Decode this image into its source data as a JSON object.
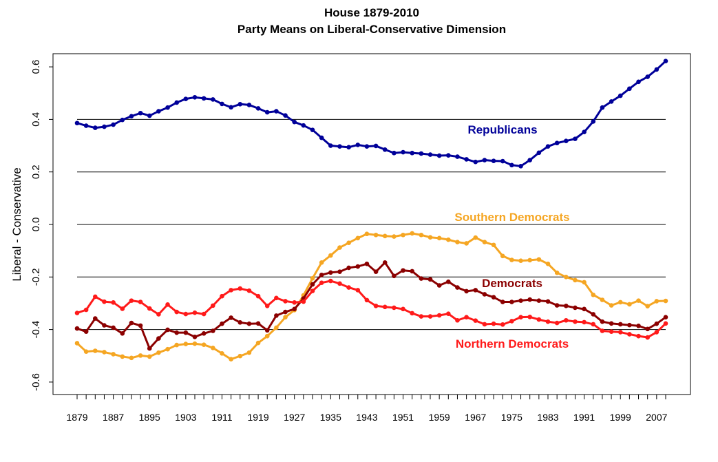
{
  "chart_data": {
    "type": "line",
    "title": "House 1879-2010",
    "subtitle": "Party Means on Liberal-Conservative Dimension",
    "ylabel": "Liberal - Conservative",
    "xlabel": "",
    "xlim": [
      1879,
      2009
    ],
    "ylim": [
      -0.65,
      0.65
    ],
    "x_ticks": [
      "1879",
      "1887",
      "1895",
      "1903",
      "1911",
      "1919",
      "1927",
      "1935",
      "1943",
      "1951",
      "1959",
      "1967",
      "1975",
      "1983",
      "1991",
      "1999",
      "2007"
    ],
    "y_ticks": [
      "-0.6",
      "-0.4",
      "-0.2",
      "0.0",
      "0.2",
      "0.4",
      "0.6"
    ],
    "reference_lines": [
      -0.4,
      -0.2,
      0.0,
      0.2,
      0.4
    ],
    "x": [
      1879,
      1881,
      1883,
      1885,
      1887,
      1889,
      1891,
      1893,
      1895,
      1897,
      1899,
      1901,
      1903,
      1905,
      1907,
      1909,
      1911,
      1913,
      1915,
      1917,
      1919,
      1921,
      1923,
      1925,
      1927,
      1929,
      1931,
      1933,
      1935,
      1937,
      1939,
      1941,
      1943,
      1945,
      1947,
      1949,
      1951,
      1953,
      1955,
      1957,
      1959,
      1961,
      1963,
      1965,
      1967,
      1969,
      1971,
      1973,
      1975,
      1977,
      1979,
      1981,
      1983,
      1985,
      1987,
      1989,
      1991,
      1993,
      1995,
      1997,
      1999,
      2001,
      2003,
      2005,
      2007,
      2009
    ],
    "series": [
      {
        "name": "Republicans",
        "color": "#000099",
        "values": [
          0.386,
          0.376,
          0.368,
          0.372,
          0.38,
          0.398,
          0.412,
          0.424,
          0.414,
          0.431,
          0.445,
          0.464,
          0.478,
          0.484,
          0.48,
          0.476,
          0.459,
          0.446,
          0.458,
          0.455,
          0.442,
          0.427,
          0.431,
          0.415,
          0.39,
          0.377,
          0.36,
          0.33,
          0.3,
          0.297,
          0.294,
          0.303,
          0.297,
          0.299,
          0.285,
          0.272,
          0.275,
          0.272,
          0.27,
          0.266,
          0.262,
          0.263,
          0.258,
          0.248,
          0.238,
          0.245,
          0.242,
          0.241,
          0.226,
          0.222,
          0.245,
          0.273,
          0.297,
          0.31,
          0.318,
          0.326,
          0.352,
          0.392,
          0.445,
          0.468,
          0.49,
          0.517,
          0.543,
          0.562,
          0.59,
          0.622
        ]
      },
      {
        "name": "Southern Democrats",
        "color": "#f5a623",
        "values": [
          -0.452,
          -0.484,
          -0.481,
          -0.486,
          -0.494,
          -0.503,
          -0.508,
          -0.499,
          -0.503,
          -0.488,
          -0.475,
          -0.459,
          -0.455,
          -0.454,
          -0.458,
          -0.47,
          -0.491,
          -0.513,
          -0.501,
          -0.488,
          -0.451,
          -0.425,
          -0.393,
          -0.353,
          -0.326,
          -0.27,
          -0.205,
          -0.145,
          -0.118,
          -0.088,
          -0.07,
          -0.052,
          -0.036,
          -0.04,
          -0.044,
          -0.046,
          -0.04,
          -0.034,
          -0.04,
          -0.049,
          -0.052,
          -0.058,
          -0.067,
          -0.072,
          -0.05,
          -0.067,
          -0.078,
          -0.12,
          -0.135,
          -0.138,
          -0.136,
          -0.133,
          -0.15,
          -0.184,
          -0.2,
          -0.212,
          -0.22,
          -0.268,
          -0.287,
          -0.308,
          -0.296,
          -0.304,
          -0.29,
          -0.311,
          -0.292,
          -0.291
        ]
      },
      {
        "name": "Democrats",
        "color": "#8b0000",
        "values": [
          -0.396,
          -0.408,
          -0.358,
          -0.384,
          -0.393,
          -0.415,
          -0.375,
          -0.385,
          -0.472,
          -0.434,
          -0.401,
          -0.412,
          -0.412,
          -0.428,
          -0.415,
          -0.405,
          -0.378,
          -0.355,
          -0.373,
          -0.378,
          -0.377,
          -0.403,
          -0.347,
          -0.333,
          -0.322,
          -0.282,
          -0.228,
          -0.192,
          -0.183,
          -0.18,
          -0.165,
          -0.16,
          -0.15,
          -0.18,
          -0.145,
          -0.196,
          -0.175,
          -0.178,
          -0.206,
          -0.209,
          -0.232,
          -0.218,
          -0.24,
          -0.254,
          -0.25,
          -0.266,
          -0.277,
          -0.295,
          -0.295,
          -0.29,
          -0.286,
          -0.29,
          -0.293,
          -0.308,
          -0.31,
          -0.317,
          -0.322,
          -0.342,
          -0.37,
          -0.377,
          -0.38,
          -0.383,
          -0.386,
          -0.398,
          -0.378,
          -0.353
        ]
      },
      {
        "name": "Northern Democrats",
        "color": "#ff1a1a",
        "values": [
          -0.337,
          -0.325,
          -0.275,
          -0.294,
          -0.297,
          -0.321,
          -0.29,
          -0.295,
          -0.32,
          -0.342,
          -0.305,
          -0.333,
          -0.341,
          -0.336,
          -0.341,
          -0.309,
          -0.273,
          -0.25,
          -0.244,
          -0.252,
          -0.273,
          -0.31,
          -0.28,
          -0.292,
          -0.297,
          -0.294,
          -0.253,
          -0.222,
          -0.215,
          -0.225,
          -0.24,
          -0.25,
          -0.288,
          -0.31,
          -0.314,
          -0.317,
          -0.322,
          -0.338,
          -0.35,
          -0.35,
          -0.346,
          -0.34,
          -0.365,
          -0.353,
          -0.366,
          -0.38,
          -0.378,
          -0.381,
          -0.368,
          -0.353,
          -0.352,
          -0.362,
          -0.37,
          -0.375,
          -0.365,
          -0.37,
          -0.372,
          -0.38,
          -0.405,
          -0.408,
          -0.41,
          -0.418,
          -0.425,
          -0.43,
          -0.41,
          -0.377
        ]
      }
    ]
  }
}
